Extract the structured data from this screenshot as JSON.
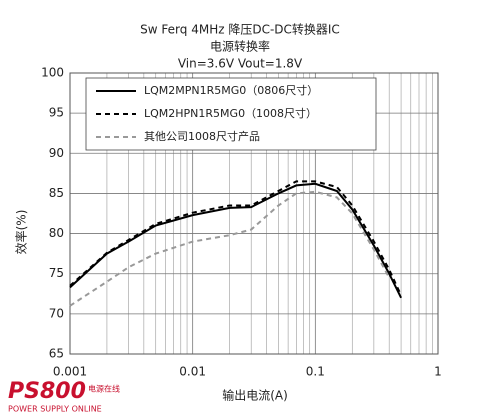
{
  "chart_data": {
    "type": "line",
    "title": "Sw  Ferq  4MHz  降压DC-DC转换器IC",
    "subtitle": "电源转换率",
    "conditions": "Vin=3.6V   Vout=1.8V",
    "xlabel": "输出电流(A)",
    "ylabel": "效率(%)",
    "x": [
      0.001,
      0.002,
      0.003,
      0.005,
      0.01,
      0.02,
      0.03,
      0.05,
      0.07,
      0.1,
      0.15,
      0.2,
      0.3,
      0.4,
      0.5
    ],
    "series": [
      {
        "name": "LQM2MPN1R5MG0（0806尺寸）",
        "color": "#000000",
        "style": "solid",
        "values": [
          73.3,
          77.5,
          79,
          81,
          82.3,
          83.2,
          83.3,
          85,
          86,
          86.2,
          85.3,
          83,
          78.5,
          75,
          72
        ]
      },
      {
        "name": "LQM2HPN1R5MG0（1008尺寸）",
        "color": "#000000",
        "style": "dashed",
        "values": [
          73.5,
          77.6,
          79.2,
          81.2,
          82.6,
          83.5,
          83.5,
          85.3,
          86.5,
          86.5,
          85.8,
          83.5,
          79,
          75.5,
          72.3
        ]
      },
      {
        "name": "其他公司1008尺寸产品",
        "color": "#999999",
        "style": "dashed",
        "values": [
          71,
          74,
          75.8,
          77.5,
          79,
          79.8,
          80.5,
          83.5,
          85,
          85.2,
          84.5,
          82.5,
          78,
          74.5,
          null
        ]
      }
    ],
    "xlim": [
      0.001,
      1
    ],
    "xticks": [
      0.001,
      0.01,
      0.1,
      1
    ],
    "xminorticks": [
      0.002,
      0.003,
      0.004,
      0.005,
      0.006,
      0.007,
      0.008,
      0.009,
      0.02,
      0.03,
      0.04,
      0.05,
      0.06,
      0.07,
      0.08,
      0.09,
      0.2,
      0.3,
      0.4,
      0.5,
      0.6,
      0.7,
      0.8,
      0.9
    ],
    "xscale": "log",
    "ylim": [
      65,
      100
    ],
    "yticks": [
      65,
      70,
      75,
      80,
      85,
      90,
      95,
      100
    ],
    "grid": true,
    "legend": "upper left"
  },
  "logo": {
    "name": "PS800",
    "tagline_cn": "电源在线",
    "tagline_en": "POWER SUPPLY ONLINE"
  }
}
